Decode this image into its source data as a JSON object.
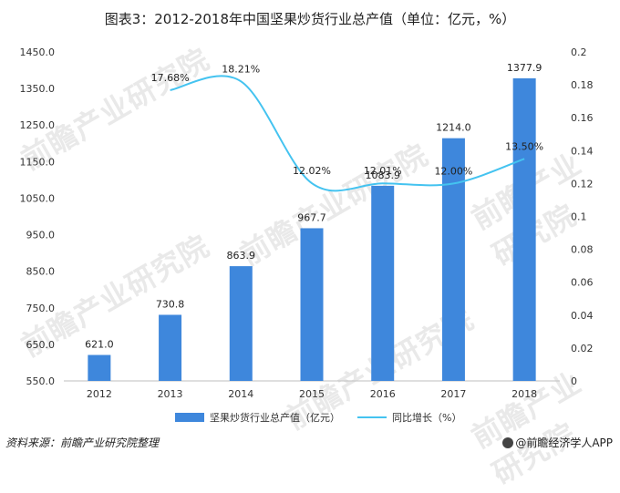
{
  "title": "图表3：2012-2018年中国坚果炒货行业总产值（单位：亿元，%）",
  "watermark": "前瞻产业研究院",
  "source": "资料来源：前瞻产业研究院整理",
  "brand": "@前瞻经济学人APP",
  "chart_data": {
    "type": "bar",
    "categories": [
      "2012",
      "2013",
      "2014",
      "2015",
      "2016",
      "2017",
      "2018"
    ],
    "series": [
      {
        "name": "坚果炒货行业总产值（亿元）",
        "type": "bar",
        "axis": "left",
        "values": [
          621.0,
          730.8,
          863.9,
          967.7,
          1083.9,
          1214.0,
          1377.9
        ],
        "labels": [
          "621.0",
          "730.8",
          "863.9",
          "967.7",
          "1083.9",
          "1214.0",
          "1377.9"
        ],
        "color": "#3e87dc"
      },
      {
        "name": "同比增长（%）",
        "type": "line",
        "axis": "right",
        "values": [
          null,
          0.1768,
          0.1821,
          0.1202,
          0.1201,
          0.12,
          0.135
        ],
        "labels": [
          "",
          "17.68%",
          "18.21%",
          "12.02%",
          "12.01%",
          "12.00%",
          "13.50%"
        ],
        "color": "#44c3f0"
      }
    ],
    "left_axis": {
      "min": 550,
      "max": 1450,
      "ticks": [
        "550.0",
        "650.0",
        "750.0",
        "850.0",
        "950.0",
        "1050.0",
        "1150.0",
        "1250.0",
        "1350.0",
        "1450.0"
      ]
    },
    "right_axis": {
      "min": 0,
      "max": 0.2,
      "ticks": [
        "0",
        "0.02",
        "0.04",
        "0.06",
        "0.08",
        "0.1",
        "0.12",
        "0.14",
        "0.16",
        "0.18",
        "0.2"
      ]
    },
    "grid": false,
    "legend_position": "bottom"
  }
}
